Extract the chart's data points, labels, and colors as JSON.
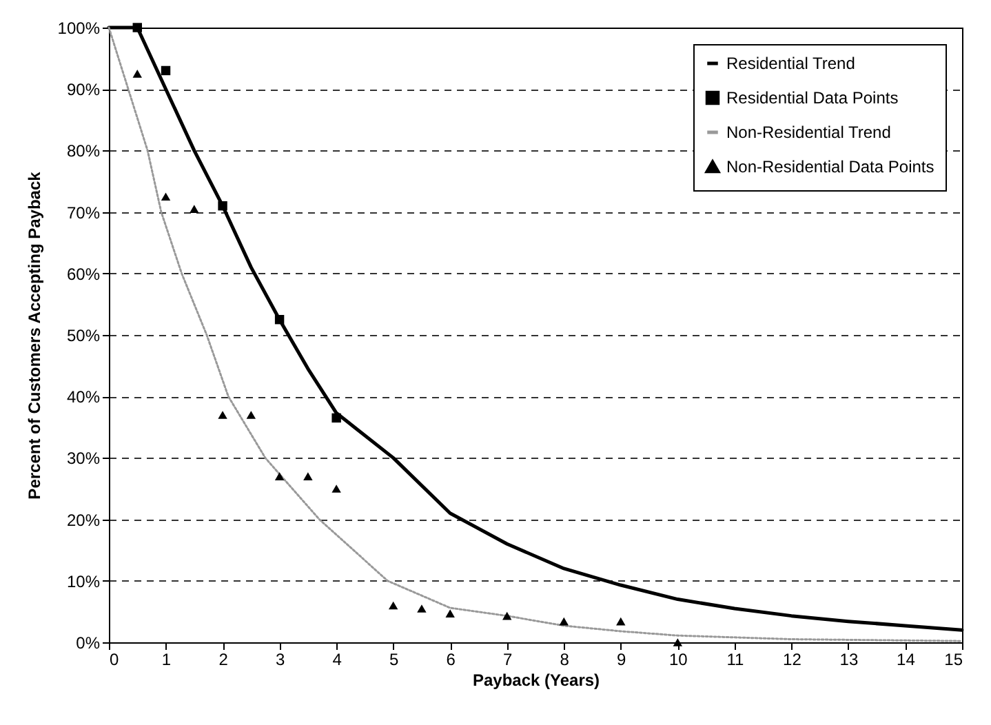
{
  "chart_data": {
    "type": "line",
    "xlabel": "Payback (Years)",
    "ylabel": "Percent of Customers Accepting Payback",
    "xlim": [
      0,
      15
    ],
    "xticks": [
      0,
      1,
      2,
      3,
      4,
      5,
      6,
      7,
      8,
      9,
      10,
      11,
      12,
      13,
      14,
      15
    ],
    "ylim": [
      0,
      100
    ],
    "yticks": [
      {
        "value": 0,
        "label": "0%"
      },
      {
        "value": 10,
        "label": "10%"
      },
      {
        "value": 20,
        "label": "20%"
      },
      {
        "value": 30,
        "label": "30%"
      },
      {
        "value": 40,
        "label": "40%"
      },
      {
        "value": 50,
        "label": "50%"
      },
      {
        "value": 60,
        "label": "60%"
      },
      {
        "value": 70,
        "label": "70%"
      },
      {
        "value": 80,
        "label": "80%"
      },
      {
        "value": 90,
        "label": "90%"
      },
      {
        "value": 100,
        "label": "100%"
      }
    ],
    "grid": "y",
    "legend": "top right",
    "series": [
      {
        "name": "Residential Trend",
        "color": "#000000",
        "line_style": "solid",
        "marker": "none",
        "x": [
          0,
          0.5,
          1,
          1.5,
          2,
          2.5,
          3,
          3.5,
          4,
          5,
          6,
          7,
          8,
          9,
          10,
          11,
          12,
          13,
          14,
          15
        ],
        "values": [
          100,
          100,
          90,
          80,
          71,
          61,
          52.5,
          44.5,
          37.3,
          30,
          21,
          16,
          12,
          9.3,
          7,
          5.5,
          4.3,
          3.4,
          2.7,
          2
        ]
      },
      {
        "name": "Residential Data Points",
        "type": "scatter",
        "color": "#000000",
        "marker": "square",
        "x": [
          0.5,
          1,
          2,
          3,
          4
        ],
        "values": [
          100,
          93,
          71,
          52.5,
          36.5
        ]
      },
      {
        "name": "Non-Residential Trend",
        "color": "#999999",
        "line_style": "dotted",
        "marker": "none",
        "x": [
          0,
          0.34,
          0.68,
          0.92,
          1.28,
          1.72,
          2.1,
          2.75,
          3.7,
          4.9,
          6,
          7,
          8,
          9,
          10,
          12,
          15
        ],
        "values": [
          100,
          90,
          80,
          70,
          60,
          50,
          40,
          30,
          20,
          10,
          5.6,
          4.3,
          2.7,
          1.8,
          1.1,
          0.5,
          0.2
        ]
      },
      {
        "name": "Non-Residential Data Points",
        "type": "scatter",
        "color": "#000000",
        "marker": "triangle",
        "x": [
          0.5,
          1,
          1.5,
          2,
          2.5,
          3,
          3.5,
          4,
          5,
          5.5,
          6,
          7,
          8,
          9,
          10
        ],
        "values": [
          92.5,
          72.5,
          70.5,
          37,
          37,
          27,
          27,
          25,
          6,
          5.5,
          4.7,
          4.3,
          3.4,
          3.4,
          0
        ]
      }
    ]
  }
}
